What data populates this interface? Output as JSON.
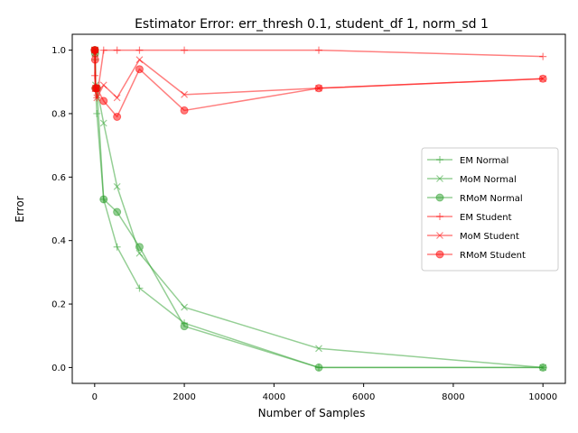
{
  "chart_data": {
    "type": "line",
    "title": "Estimator Error: err_thresh 0.1, student_df 1, norm_sd 1",
    "xlabel": "Number of Samples",
    "ylabel": "Error",
    "xlim": [
      -500,
      10500
    ],
    "ylim": [
      -0.05,
      1.05
    ],
    "xticks": [
      0,
      2000,
      4000,
      6000,
      8000,
      10000
    ],
    "xtick_labels": [
      "0",
      "2000",
      "4000",
      "6000",
      "8000",
      "10000"
    ],
    "yticks": [
      0.0,
      0.2,
      0.4,
      0.6,
      0.8,
      1.0
    ],
    "ytick_labels": [
      "0.0",
      "0.2",
      "0.4",
      "0.6",
      "0.8",
      "1.0"
    ],
    "grid": false,
    "legend_position": "center-right",
    "x": [
      2,
      5,
      10,
      20,
      50,
      200,
      500,
      1000,
      2000,
      5000,
      10000
    ],
    "series": [
      {
        "name": "EM Normal",
        "color": "#2ca02c",
        "marker": "plus",
        "values": [
          1.0,
          1.0,
          0.97,
          0.88,
          0.8,
          0.53,
          0.38,
          0.25,
          0.14,
          0.0,
          0.0
        ]
      },
      {
        "name": "MoM Normal",
        "color": "#2ca02c",
        "marker": "x",
        "values": [
          1.0,
          1.0,
          0.99,
          0.89,
          0.88,
          0.77,
          0.57,
          0.36,
          0.19,
          0.06,
          0.0
        ]
      },
      {
        "name": "RMoM Normal",
        "color": "#2ca02c",
        "marker": "circle",
        "values": [
          1.0,
          1.0,
          0.99,
          0.88,
          0.88,
          0.53,
          0.49,
          0.38,
          0.13,
          0.0,
          0.0
        ]
      },
      {
        "name": "EM Student",
        "color": "#ff0000",
        "marker": "plus",
        "values": [
          1.0,
          0.92,
          0.88,
          0.87,
          0.85,
          1.0,
          1.0,
          1.0,
          1.0,
          1.0,
          0.98
        ]
      },
      {
        "name": "MoM Student",
        "color": "#ff0000",
        "marker": "x",
        "values": [
          1.0,
          1.0,
          0.99,
          0.88,
          0.85,
          0.89,
          0.85,
          0.97,
          0.86,
          0.88,
          0.91
        ]
      },
      {
        "name": "RMoM Student",
        "color": "#ff0000",
        "marker": "circle",
        "values": [
          1.0,
          1.0,
          0.97,
          0.88,
          0.88,
          0.84,
          0.79,
          0.94,
          0.81,
          0.88,
          0.91
        ]
      }
    ]
  }
}
